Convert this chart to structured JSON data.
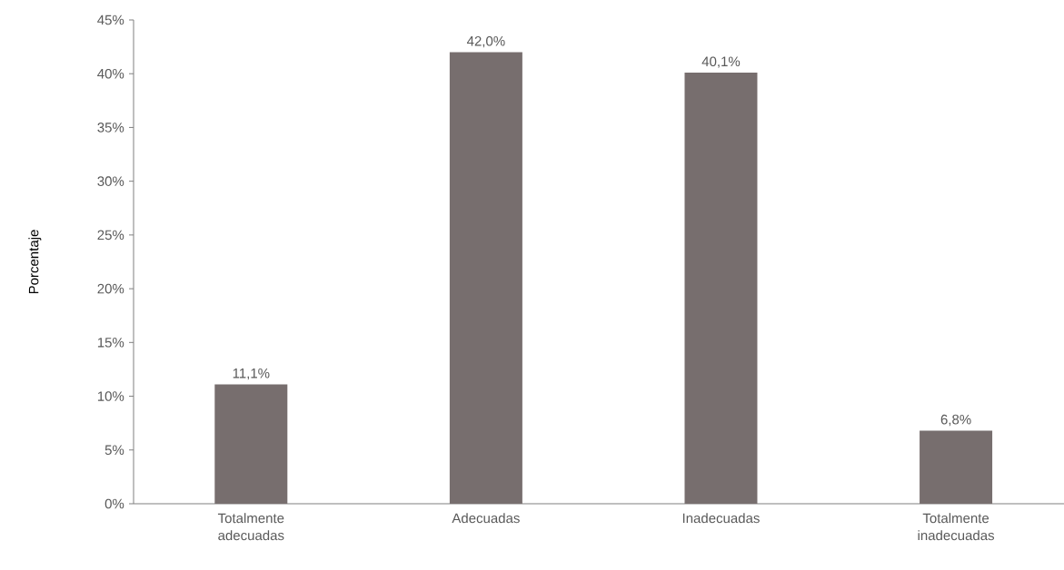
{
  "chart_data": {
    "type": "bar",
    "ylabel": "Porcentaje",
    "categories": [
      "Totalmente adecuadas",
      "Adecuadas",
      "Inadecuadas",
      "Totalmente inadecuadas"
    ],
    "values": [
      11.1,
      42.0,
      40.1,
      6.8
    ],
    "value_labels": [
      "11,1%",
      "42,0%",
      "40,1%",
      "6,8%"
    ],
    "color": "#776e6e",
    "ylim": [
      0,
      45
    ],
    "yticks": [
      {
        "value": 0,
        "label": "0%"
      },
      {
        "value": 5,
        "label": "5%"
      },
      {
        "value": 10,
        "label": "10%"
      },
      {
        "value": 15,
        "label": "15%"
      },
      {
        "value": 20,
        "label": "20%"
      },
      {
        "value": 25,
        "label": "25%"
      },
      {
        "value": 30,
        "label": "30%"
      },
      {
        "value": 35,
        "label": "35%"
      },
      {
        "value": 40,
        "label": "40%"
      },
      {
        "value": 45,
        "label": "45%"
      }
    ],
    "grid": false
  }
}
